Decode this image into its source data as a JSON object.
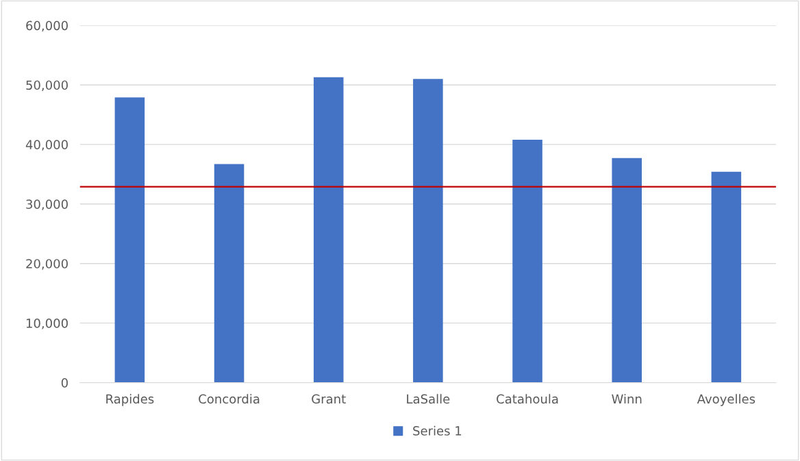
{
  "chart_data": {
    "type": "bar",
    "categories": [
      "Rapides",
      "Concordia",
      "Grant",
      "LaSalle",
      "Catahoula",
      "Winn",
      "Avoyelles"
    ],
    "series": [
      {
        "name": "Series 1",
        "color": "#4472c4",
        "values": [
          47900,
          36700,
          51300,
          51000,
          40800,
          37700,
          35400
        ]
      }
    ],
    "ylim": [
      0,
      60000
    ],
    "yticks": [
      {
        "value": 0,
        "label": "0"
      },
      {
        "value": 10000,
        "label": "10,000"
      },
      {
        "value": 20000,
        "label": "20,000"
      },
      {
        "value": 30000,
        "label": "30,000"
      },
      {
        "value": 40000,
        "label": "40,000"
      },
      {
        "value": 50000,
        "label": "50,000"
      },
      {
        "value": 60000,
        "label": "60,000"
      }
    ],
    "grid": "y",
    "legend": "bottom",
    "ref_lines": [
      {
        "axis": "y",
        "value": 32900,
        "label": null,
        "color": "#c00000"
      }
    ]
  }
}
